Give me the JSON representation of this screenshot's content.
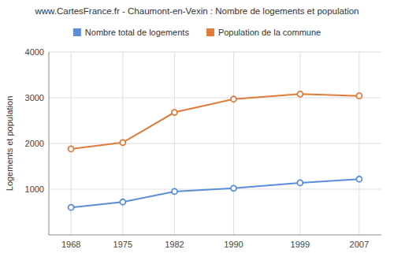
{
  "chart_data": {
    "type": "line",
    "title": "www.CartesFrance.fr - Chaumont-en-Vexin : Nombre de logements et population",
    "y_label": "Logements et population",
    "x": [
      1968,
      1975,
      1982,
      1990,
      1999,
      2007
    ],
    "series": [
      {
        "name": "Nombre total de logements",
        "color": "#5b8dd9",
        "marker": "circle",
        "values": [
          600,
          720,
          950,
          1020,
          1140,
          1220
        ]
      },
      {
        "name": "Population de la commune",
        "color": "#e07b3a",
        "marker": "circle",
        "values": [
          1880,
          2020,
          2680,
          2970,
          3080,
          3040
        ]
      }
    ],
    "xlim": [
      1965,
      2010
    ],
    "xticks": [
      1968,
      1975,
      1982,
      1990,
      1999,
      2007
    ],
    "ylim": [
      0,
      4000
    ],
    "yticks": [
      1000,
      2000,
      3000,
      4000
    ],
    "grid": true,
    "legend": "top"
  }
}
